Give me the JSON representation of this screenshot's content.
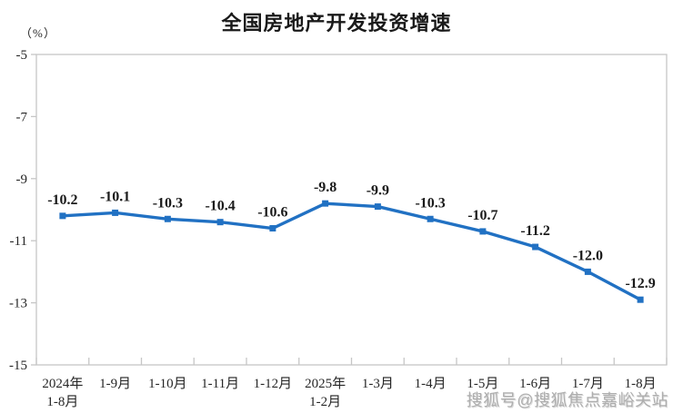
{
  "header": {
    "title": "全国房地产开发投资增速",
    "unit_label": "（%）"
  },
  "watermark": {
    "text": "搜狐号@搜狐焦点嘉峪关站"
  },
  "colors": {
    "line": "#2171c3",
    "marker": "#2171c3",
    "axis": "#c6c6c6",
    "text": "#262626",
    "watermark": "#aeaeae"
  },
  "chart_data": {
    "type": "line",
    "title": "全国房地产开发投资增速",
    "unit": "%",
    "categories": [
      [
        "2024年",
        "1-8月"
      ],
      [
        "1-9月"
      ],
      [
        "1-10月"
      ],
      [
        "1-11月"
      ],
      [
        "1-12月"
      ],
      [
        "2025年",
        "1-2月"
      ],
      [
        "1-3月"
      ],
      [
        "1-4月"
      ],
      [
        "1-5月"
      ],
      [
        "1-6月"
      ],
      [
        "1-7月"
      ],
      [
        "1-8月"
      ]
    ],
    "values": [
      -10.2,
      -10.1,
      -10.3,
      -10.4,
      -10.6,
      -9.8,
      -9.9,
      -10.3,
      -10.7,
      -11.2,
      -12.0,
      -12.9
    ],
    "data_labels": [
      "-10.2",
      "-10.1",
      "-10.3",
      "-10.4",
      "-10.6",
      "-9.8",
      "-9.9",
      "-10.3",
      "-10.7",
      "-11.2",
      "-12.0",
      "-12.9"
    ],
    "xlabel": "",
    "ylabel": "（%）",
    "ylim": [
      -15,
      -5
    ],
    "yticks": [
      -5,
      -7,
      -9,
      -11,
      -13,
      -15
    ],
    "grid": false,
    "legend": "none",
    "marker": "square",
    "line_color": "#2171c3"
  }
}
